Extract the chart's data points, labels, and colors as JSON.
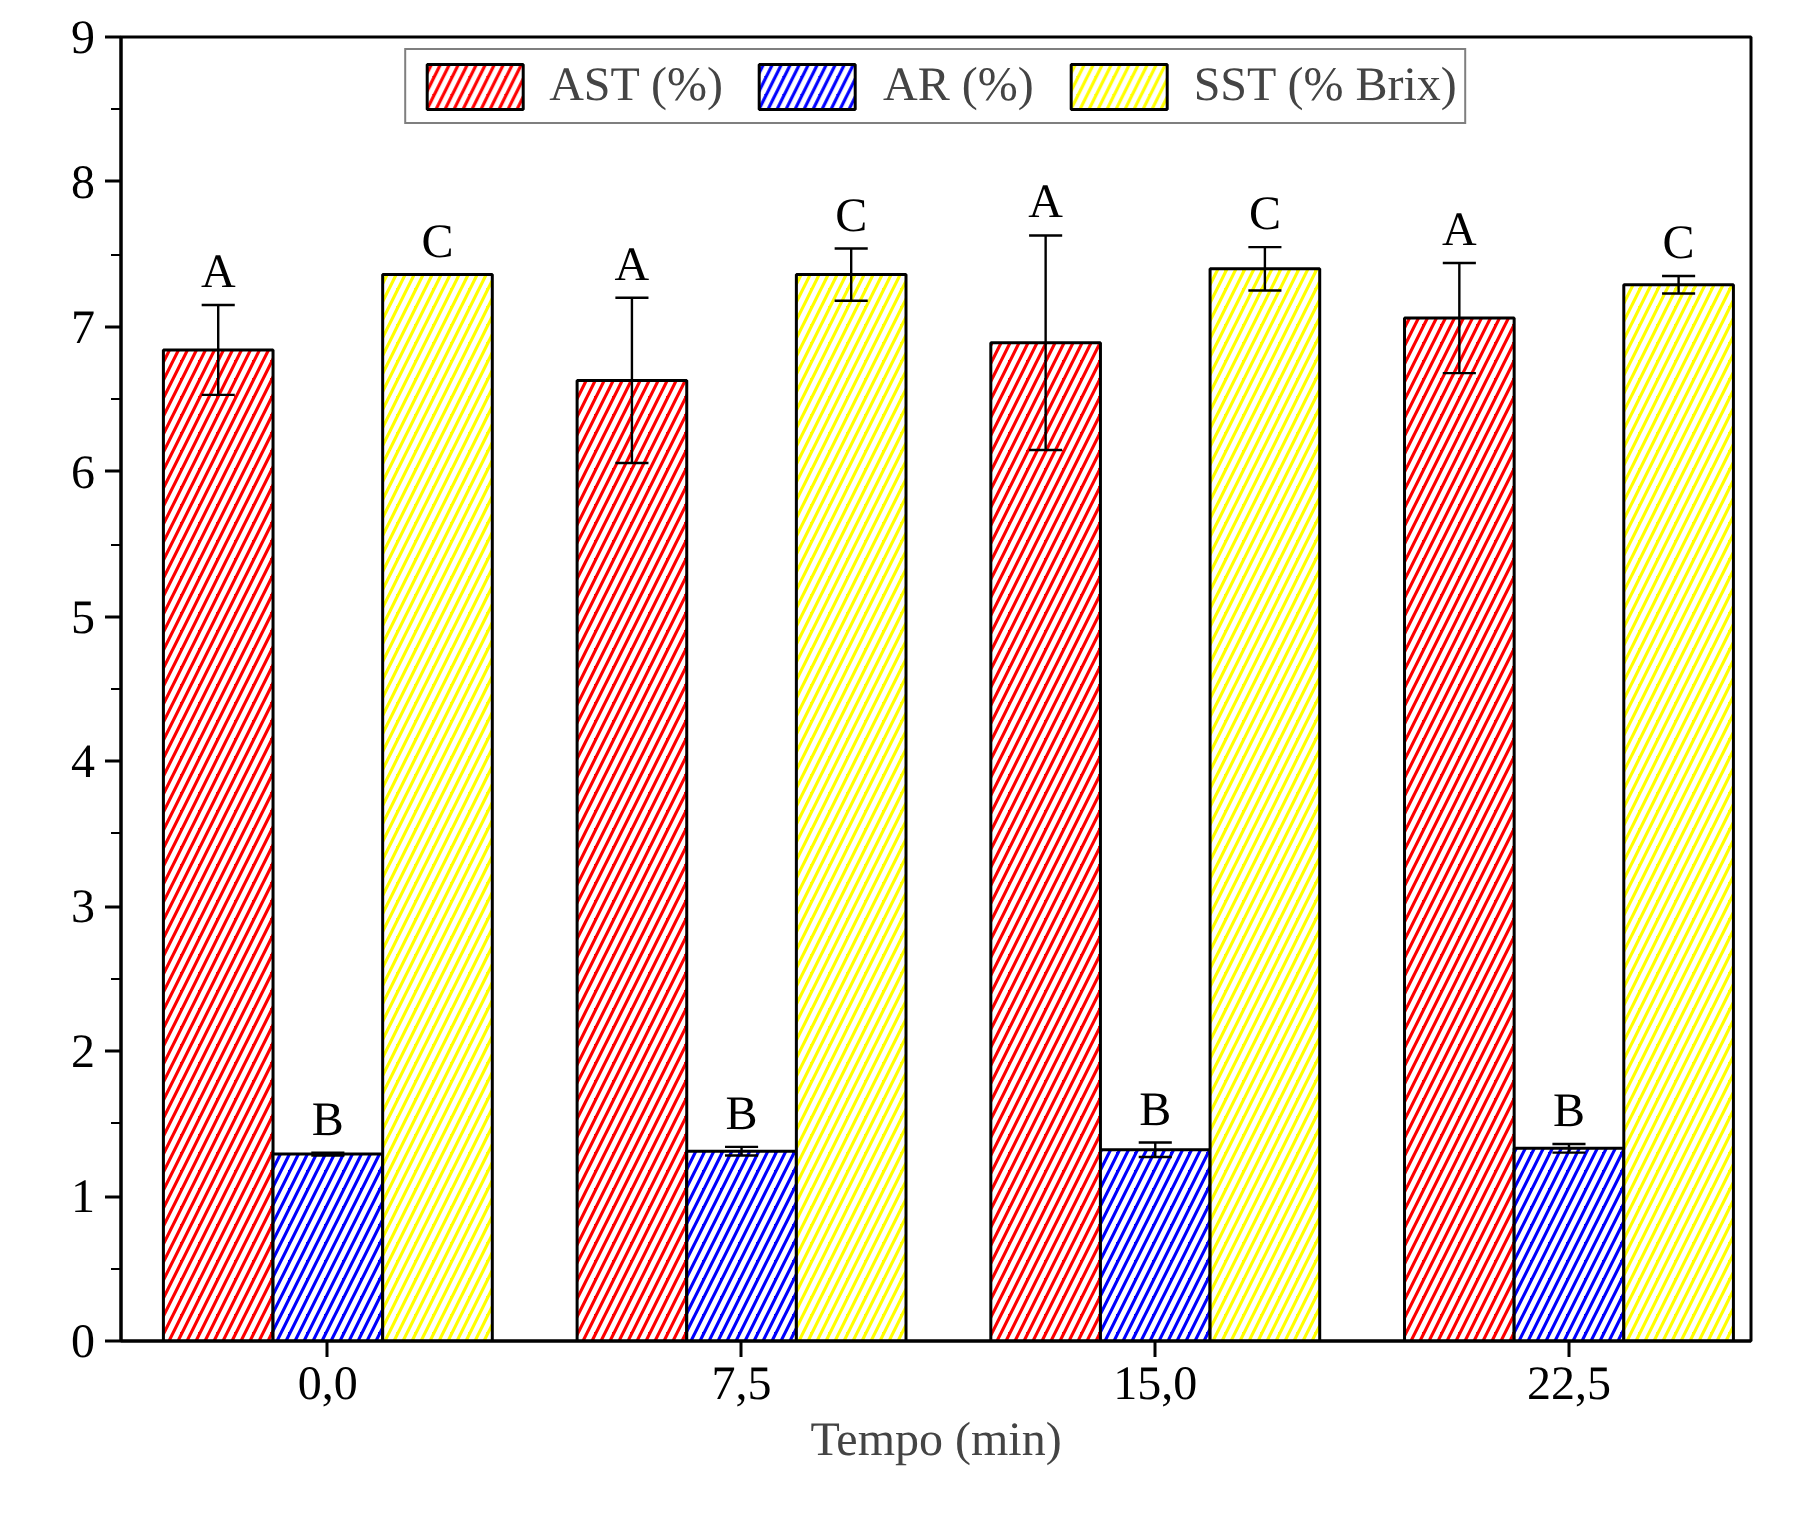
{
  "chart_data": {
    "type": "bar",
    "xlabel": "Tempo (min)",
    "categories": [
      "0,0",
      "7,5",
      "15,0",
      "22,5"
    ],
    "ylim": [
      0,
      9
    ],
    "yticks": [
      0,
      1,
      2,
      3,
      4,
      5,
      6,
      7,
      8,
      9
    ],
    "legend": "top",
    "grid": false,
    "series": [
      {
        "name": "AST (%)",
        "color": "#ff0000",
        "values": [
          6.84,
          6.63,
          6.89,
          7.06
        ],
        "errors": [
          0.31,
          0.57,
          0.74,
          0.38
        ],
        "value_labels": [
          "A",
          "A",
          "A",
          "A"
        ]
      },
      {
        "name": "AR (%)",
        "color": "#0000ff",
        "values": [
          1.29,
          1.31,
          1.32,
          1.33
        ],
        "errors": [
          0.01,
          0.03,
          0.05,
          0.03
        ],
        "value_labels": [
          "B",
          "B",
          "B",
          "B"
        ]
      },
      {
        "name": "SST (% Brix)",
        "color": "#ffff00",
        "values": [
          7.36,
          7.36,
          7.4,
          7.29
        ],
        "errors": [
          null,
          0.18,
          0.15,
          0.06
        ],
        "value_labels": [
          "C",
          "C",
          "C",
          "C"
        ]
      }
    ]
  }
}
